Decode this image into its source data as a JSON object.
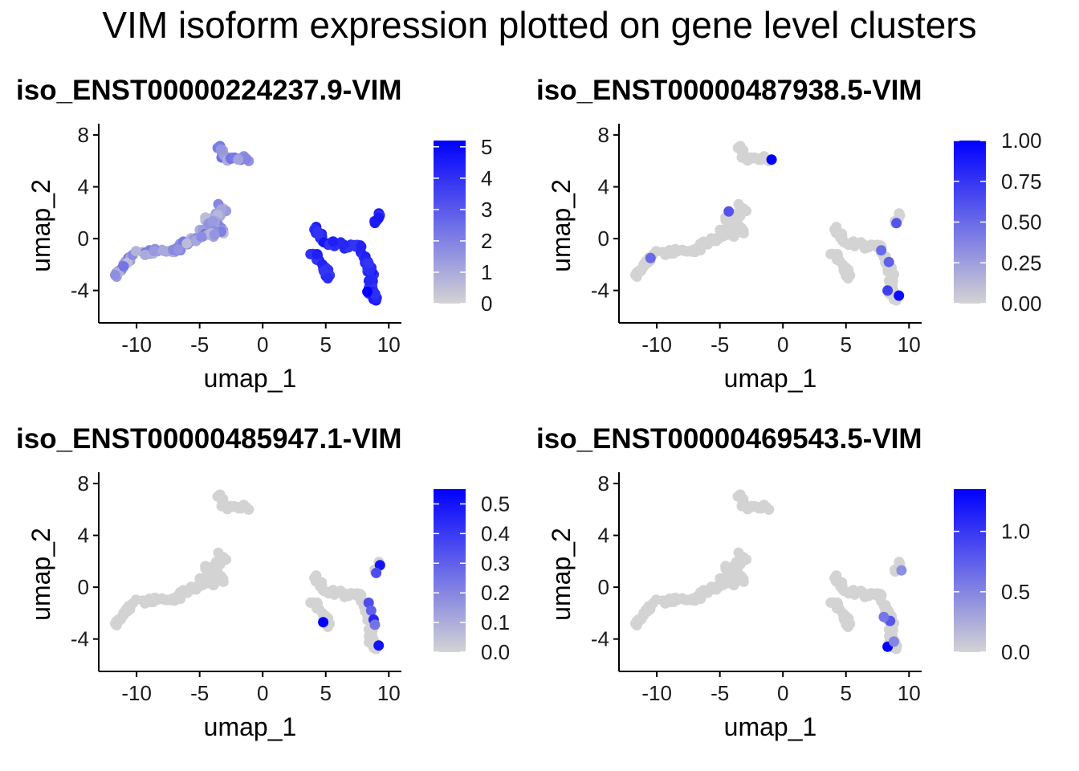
{
  "title": "VIM isoform expression plotted on gene level clusters",
  "colors": {
    "low": "#d3d3d3",
    "high": "#0000ff"
  },
  "chart_data": [
    {
      "type": "scatter",
      "title": "iso_ENST00000224237.9-VIM",
      "xlabel": "umap_1",
      "ylabel": "umap_2",
      "xlim": [
        -13,
        11
      ],
      "ylim": [
        -6.5,
        8.5
      ],
      "xticks": [
        -10,
        -5,
        0,
        5,
        10
      ],
      "xtick_labels": [
        "-10",
        "-5",
        "0",
        "5",
        "10"
      ],
      "yticks": [
        -4,
        0,
        4,
        8
      ],
      "ytick_labels": [
        "-4",
        "0",
        "4",
        "8"
      ],
      "color_scale": {
        "min": 0,
        "max": 5.2,
        "ticks": [
          0,
          1,
          2,
          3,
          4,
          5
        ],
        "tick_labels": [
          "0",
          "1",
          "2",
          "3",
          "4",
          "5"
        ]
      },
      "level_profile": "gene",
      "highlights": [
        {
          "x": 8.3,
          "y": -4.1,
          "value": 5.2
        },
        {
          "x": 9.2,
          "y": 1.6,
          "value": 4.6
        }
      ],
      "grid": false,
      "legend": "right"
    },
    {
      "type": "scatter",
      "title": "iso_ENST00000487938.5-VIM",
      "xlabel": "umap_1",
      "ylabel": "umap_2",
      "xlim": [
        -13,
        11
      ],
      "ylim": [
        -6.5,
        8.5
      ],
      "xticks": [
        -10,
        -5,
        0,
        5,
        10
      ],
      "xtick_labels": [
        "-10",
        "-5",
        "0",
        "5",
        "10"
      ],
      "yticks": [
        -4,
        0,
        4,
        8
      ],
      "ytick_labels": [
        "-4",
        "0",
        "4",
        "8"
      ],
      "color_scale": {
        "min": 0,
        "max": 1.0,
        "ticks": [
          0,
          0.25,
          0.5,
          0.75,
          1.0
        ],
        "tick_labels": [
          "0.00",
          "0.25",
          "0.50",
          "0.75",
          "1.00"
        ]
      },
      "level_profile": "sparse",
      "highlights": [
        {
          "x": -0.9,
          "y": 6.1,
          "value": 1.0
        },
        {
          "x": -4.3,
          "y": 2.1,
          "value": 0.6
        },
        {
          "x": -10.5,
          "y": -1.5,
          "value": 0.5
        },
        {
          "x": 9.0,
          "y": 1.2,
          "value": 0.6
        },
        {
          "x": 7.8,
          "y": -0.9,
          "value": 0.5
        },
        {
          "x": 8.4,
          "y": -1.8,
          "value": 0.55
        },
        {
          "x": 9.2,
          "y": -4.4,
          "value": 0.95
        },
        {
          "x": 8.3,
          "y": -4.0,
          "value": 0.7
        }
      ],
      "grid": false,
      "legend": "right"
    },
    {
      "type": "scatter",
      "title": "iso_ENST00000485947.1-VIM",
      "xlabel": "umap_1",
      "ylabel": "umap_2",
      "xlim": [
        -13,
        11
      ],
      "ylim": [
        -6.5,
        8.5
      ],
      "xticks": [
        -10,
        -5,
        0,
        5,
        10
      ],
      "xtick_labels": [
        "-10",
        "-5",
        "0",
        "5",
        "10"
      ],
      "yticks": [
        -4,
        0,
        4,
        8
      ],
      "ytick_labels": [
        "-4",
        "0",
        "4",
        "8"
      ],
      "color_scale": {
        "min": 0,
        "max": 0.55,
        "ticks": [
          0,
          0.1,
          0.2,
          0.3,
          0.4,
          0.5
        ],
        "tick_labels": [
          "0.0",
          "0.1",
          "0.2",
          "0.3",
          "0.4",
          "0.5"
        ]
      },
      "level_profile": "sparse",
      "highlights": [
        {
          "x": 4.8,
          "y": -2.7,
          "value": 0.55
        },
        {
          "x": 9.3,
          "y": 1.7,
          "value": 0.5
        },
        {
          "x": 9.0,
          "y": 1.1,
          "value": 0.35
        },
        {
          "x": 8.4,
          "y": -1.2,
          "value": 0.35
        },
        {
          "x": 8.6,
          "y": -1.8,
          "value": 0.3
        },
        {
          "x": 8.8,
          "y": -2.5,
          "value": 0.45
        },
        {
          "x": 8.9,
          "y": -2.9,
          "value": 0.25
        },
        {
          "x": 9.2,
          "y": -4.5,
          "value": 0.5
        }
      ],
      "grid": false,
      "legend": "right"
    },
    {
      "type": "scatter",
      "title": "iso_ENST00000469543.5-VIM",
      "xlabel": "umap_1",
      "ylabel": "umap_2",
      "xlim": [
        -13,
        11
      ],
      "ylim": [
        -6.5,
        8.5
      ],
      "xticks": [
        -10,
        -5,
        0,
        5,
        10
      ],
      "xtick_labels": [
        "-10",
        "-5",
        "0",
        "5",
        "10"
      ],
      "yticks": [
        -4,
        0,
        4,
        8
      ],
      "ytick_labels": [
        "-4",
        "0",
        "4",
        "8"
      ],
      "color_scale": {
        "min": 0,
        "max": 1.35,
        "ticks": [
          0,
          0.5,
          1.0
        ],
        "tick_labels": [
          "0.0",
          "0.5",
          "1.0"
        ]
      },
      "level_profile": "sparse",
      "highlights": [
        {
          "x": 8.3,
          "y": -4.6,
          "value": 1.35
        },
        {
          "x": 8.5,
          "y": -2.6,
          "value": 0.8
        },
        {
          "x": 8.0,
          "y": -2.3,
          "value": 0.6
        },
        {
          "x": 9.4,
          "y": 1.3,
          "value": 0.45
        },
        {
          "x": 8.8,
          "y": -4.2,
          "value": 0.5
        }
      ],
      "grid": false,
      "legend": "right"
    }
  ]
}
